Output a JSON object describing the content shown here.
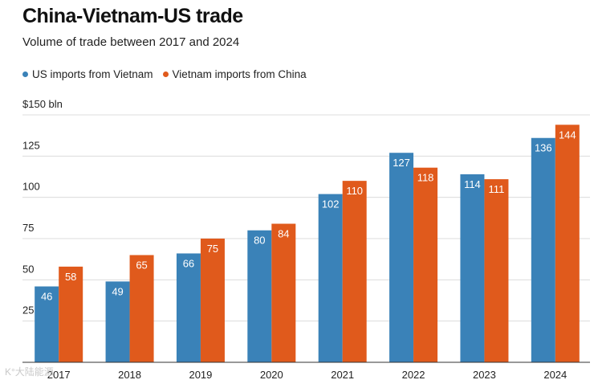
{
  "title": "China-Vietnam-US trade",
  "subtitle": "Volume of trade between 2017 and 2024",
  "watermark": "K°大陆能源",
  "colors": {
    "series1": "#3a82b8",
    "series2": "#e05a1c",
    "grid": "#dcdcdc",
    "axis": "#333333"
  },
  "chart_data": {
    "type": "bar",
    "title": "China-Vietnam-US trade",
    "subtitle": "Volume of trade between 2017 and 2024",
    "xlabel": "",
    "ylabel": "",
    "ylim": [
      0,
      150
    ],
    "yticks": [
      25,
      50,
      75,
      100,
      125,
      150
    ],
    "ytick_labels": [
      "25",
      "50",
      "75",
      "100",
      "125",
      "$150 bln"
    ],
    "grid": true,
    "legend_position": "top-left",
    "categories": [
      "2017",
      "2018",
      "2019",
      "2020",
      "2021",
      "2022",
      "2023",
      "2024"
    ],
    "series": [
      {
        "name": "US imports from Vietnam",
        "values": [
          46,
          49,
          66,
          80,
          102,
          127,
          114,
          136
        ]
      },
      {
        "name": "Vietnam imports from China",
        "values": [
          58,
          65,
          75,
          84,
          110,
          118,
          111,
          144
        ]
      }
    ]
  }
}
